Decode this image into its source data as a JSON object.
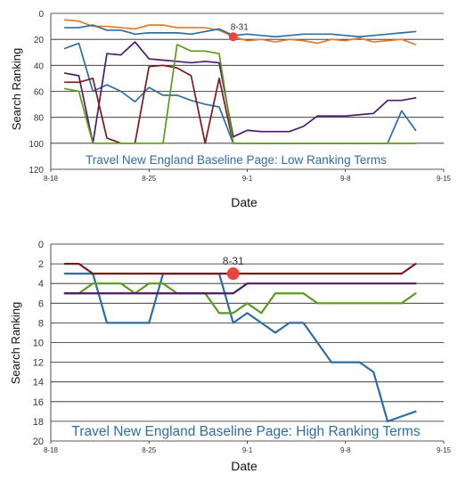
{
  "charts": [
    {
      "ylabel": "Search Ranking",
      "xlabel": "Date",
      "ylim": [
        0,
        120
      ],
      "yticks": [
        "0",
        "20",
        "40",
        "60",
        "80",
        "100",
        "120"
      ],
      "xticks": [
        "8-18",
        "8-25",
        "9-1",
        "9-8",
        "9-15"
      ],
      "marker_label": "8-31"
    },
    {
      "ylabel": "Search Ranking",
      "xlabel": "Date",
      "ylim": [
        0,
        20
      ],
      "yticks": [
        "0",
        "2",
        "4",
        "6",
        "8",
        "10",
        "12",
        "14",
        "16",
        "18",
        "20"
      ],
      "xticks": [
        "8-18",
        "8-25",
        "9-1",
        "9-8",
        "9-15"
      ],
      "marker_label": "8-31"
    }
  ],
  "chart_data": [
    {
      "type": "line",
      "title": "Travel New England Baseline Page: Low Ranking Terms",
      "xlabel": "Date",
      "ylabel": "Search Ranking",
      "ylim": [
        0,
        120
      ],
      "y_inverted": true,
      "x_axis_days_from": "8-18",
      "x_range_days": [
        0,
        28
      ],
      "xticks": [
        "8-18",
        "8-25",
        "9-1",
        "9-8",
        "9-15"
      ],
      "grid": "horizontal",
      "annotation": {
        "label": "8-31",
        "x": 13,
        "y": 18,
        "color": "#e8453c"
      },
      "series": [
        {
          "color": "#e07b2a",
          "x": [
            1,
            2,
            3,
            4,
            5,
            6,
            7,
            8,
            9,
            10,
            11,
            12,
            13,
            14,
            15,
            16,
            17,
            18,
            19,
            20,
            21,
            22,
            23,
            24,
            25,
            26
          ],
          "y": [
            5,
            6,
            10,
            10,
            11,
            12,
            9,
            9,
            11,
            11,
            11,
            13,
            18,
            21,
            20,
            22,
            20,
            21,
            23,
            20,
            21,
            19,
            22,
            21,
            20,
            24
          ]
        },
        {
          "color": "#2e6da4",
          "x": [
            1,
            2,
            3,
            4,
            5,
            6,
            7,
            8,
            9,
            10,
            11,
            12,
            13,
            14,
            15,
            16,
            17,
            18,
            19,
            20,
            21,
            22,
            23,
            24,
            25,
            26
          ],
          "y": [
            11,
            11,
            9,
            13,
            13,
            16,
            15,
            15,
            15,
            16,
            14,
            12,
            17,
            16,
            17,
            18,
            17,
            16,
            16,
            16,
            17,
            18,
            17,
            16,
            15,
            14
          ]
        },
        {
          "color": "#2e6da4",
          "x": [
            1,
            2,
            3,
            4,
            5,
            6,
            7,
            8,
            9,
            10,
            11,
            12,
            13,
            14,
            15,
            16,
            17,
            18,
            19,
            20,
            21,
            22,
            23,
            24,
            25,
            26
          ],
          "y": [
            27,
            23,
            60,
            55,
            60,
            68,
            57,
            63,
            63,
            67,
            70,
            72,
            100,
            100,
            100,
            100,
            100,
            100,
            100,
            100,
            100,
            100,
            100,
            100,
            75,
            90
          ]
        },
        {
          "color": "#4b1a6b",
          "x": [
            1,
            2,
            3,
            4,
            5,
            6,
            7,
            8,
            9,
            10,
            11,
            12,
            13,
            14,
            15,
            16,
            17,
            18,
            19,
            20,
            21,
            22,
            23,
            24,
            25,
            26
          ],
          "y": [
            46,
            48,
            100,
            31,
            32,
            22,
            35,
            36,
            37,
            38,
            37,
            38,
            95,
            90,
            91,
            91,
            91,
            87,
            79,
            79,
            79,
            78,
            77,
            67,
            67,
            65
          ]
        },
        {
          "color": "#7a1a1a",
          "x": [
            1,
            2,
            3,
            4,
            5,
            6,
            7,
            8,
            9,
            10,
            11,
            12,
            13,
            14,
            15,
            16,
            17,
            18,
            19,
            20,
            21,
            22,
            23,
            24,
            25,
            26
          ],
          "y": [
            53,
            53,
            50,
            96,
            100,
            100,
            41,
            40,
            42,
            48,
            100,
            50,
            100,
            100,
            100,
            100,
            100,
            100,
            100,
            100,
            100,
            100,
            100,
            100,
            100,
            100
          ]
        },
        {
          "color": "#5a9a1e",
          "x": [
            1,
            2,
            3,
            4,
            5,
            6,
            7,
            8,
            9,
            10,
            11,
            12,
            13,
            14,
            15,
            16,
            17,
            18,
            19,
            20,
            21,
            22,
            23,
            24,
            25,
            26
          ],
          "y": [
            58,
            60,
            100,
            100,
            100,
            100,
            100,
            100,
            24,
            29,
            29,
            31,
            100,
            100,
            100,
            100,
            100,
            100,
            100,
            100,
            100,
            100,
            100,
            100,
            100,
            100
          ]
        }
      ]
    },
    {
      "type": "line",
      "title": "Travel New England Baseline Page: High Ranking Terms",
      "xlabel": "Date",
      "ylabel": "Search Ranking",
      "ylim": [
        0,
        20
      ],
      "y_inverted": true,
      "x_axis_days_from": "8-18",
      "x_range_days": [
        0,
        28
      ],
      "xticks": [
        "8-18",
        "8-25",
        "9-1",
        "9-8",
        "9-15"
      ],
      "grid": "horizontal",
      "annotation": {
        "label": "8-31",
        "x": 13,
        "y": 3,
        "color": "#e8453c"
      },
      "series": [
        {
          "color": "#2e6da4",
          "x": [
            1,
            2,
            3,
            4,
            5,
            6,
            7,
            8,
            9,
            10,
            11,
            12,
            13,
            14,
            15,
            16,
            17,
            18,
            19,
            20,
            21,
            22,
            23,
            24,
            25,
            26
          ],
          "y": [
            3,
            3,
            3,
            8,
            8,
            8,
            8,
            3,
            3,
            3,
            3,
            3,
            8,
            7,
            8,
            9,
            8,
            8,
            10,
            12,
            12,
            12,
            13,
            18,
            17.5,
            17
          ]
        },
        {
          "color": "#5a9a1e",
          "x": [
            1,
            2,
            3,
            4,
            5,
            6,
            7,
            8,
            9,
            10,
            11,
            12,
            13,
            14,
            15,
            16,
            17,
            18,
            19,
            20,
            21,
            22,
            23,
            24,
            25,
            26
          ],
          "y": [
            5,
            5,
            4,
            4,
            4,
            5,
            4,
            4,
            5,
            5,
            5,
            7,
            7,
            6,
            7,
            5,
            5,
            5,
            6,
            6,
            6,
            6,
            6,
            6,
            6,
            5
          ]
        },
        {
          "color": "#4b1a6b",
          "x": [
            1,
            2,
            3,
            4,
            5,
            6,
            7,
            8,
            9,
            10,
            11,
            12,
            13,
            14,
            15,
            16,
            17,
            18,
            19,
            20,
            21,
            22,
            23,
            24,
            25,
            26
          ],
          "y": [
            5,
            5,
            5,
            5,
            5,
            5,
            5,
            5,
            5,
            5,
            5,
            5,
            5,
            4,
            4,
            4,
            4,
            4,
            4,
            4,
            4,
            4,
            4,
            4,
            4,
            4
          ]
        },
        {
          "color": "#7a1a1a",
          "x": [
            1,
            2,
            3,
            4,
            5,
            6,
            7,
            8,
            9,
            10,
            11,
            12,
            13,
            14,
            15,
            16,
            17,
            18,
            19,
            20,
            21,
            22,
            23,
            24,
            25,
            26
          ],
          "y": [
            2,
            2,
            3,
            3,
            3,
            3,
            3,
            3,
            3,
            3,
            3,
            3,
            3,
            3,
            3,
            3,
            3,
            3,
            3,
            3,
            3,
            3,
            3,
            3,
            3,
            2
          ]
        }
      ]
    }
  ]
}
